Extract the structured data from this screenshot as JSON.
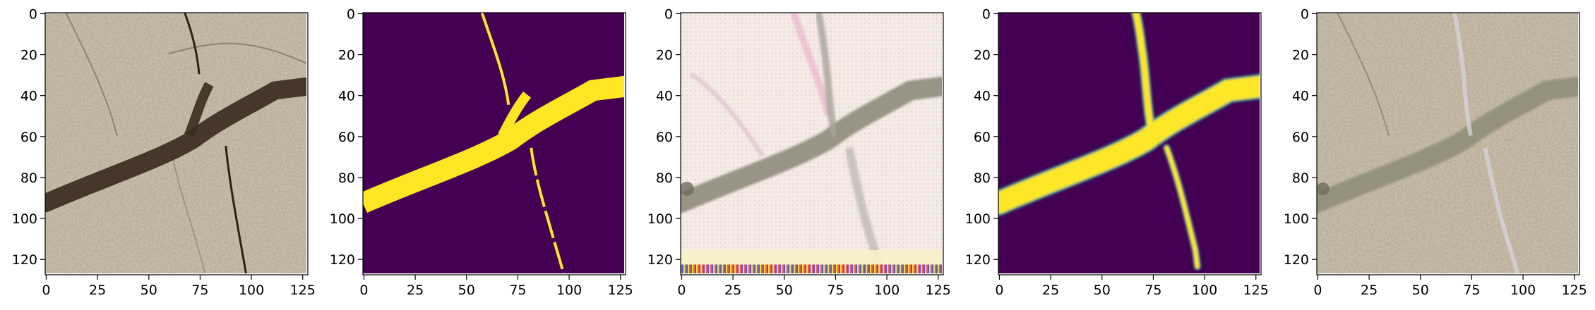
{
  "figure": {
    "panels": [
      {
        "id": "input-photo",
        "kind": "photo"
      },
      {
        "id": "ground-truth-mask",
        "kind": "mask"
      },
      {
        "id": "generated-texture",
        "kind": "generated"
      },
      {
        "id": "predicted-mask",
        "kind": "soft-mask"
      },
      {
        "id": "blended-output",
        "kind": "blended"
      }
    ],
    "axis": {
      "x_ticks": [
        0,
        25,
        50,
        75,
        100,
        125
      ],
      "y_ticks": [
        0,
        20,
        40,
        60,
        80,
        100,
        120
      ],
      "xlim": [
        -0.5,
        127.5
      ],
      "ylim": [
        127.5,
        -0.5
      ],
      "y_inverted": true
    },
    "colors": {
      "mask_background": "#440154",
      "mask_foreground": "#fde725",
      "mask_edge": "#21918c",
      "concrete": "#c8bca8",
      "crack_dark": "#3a2c20"
    }
  }
}
